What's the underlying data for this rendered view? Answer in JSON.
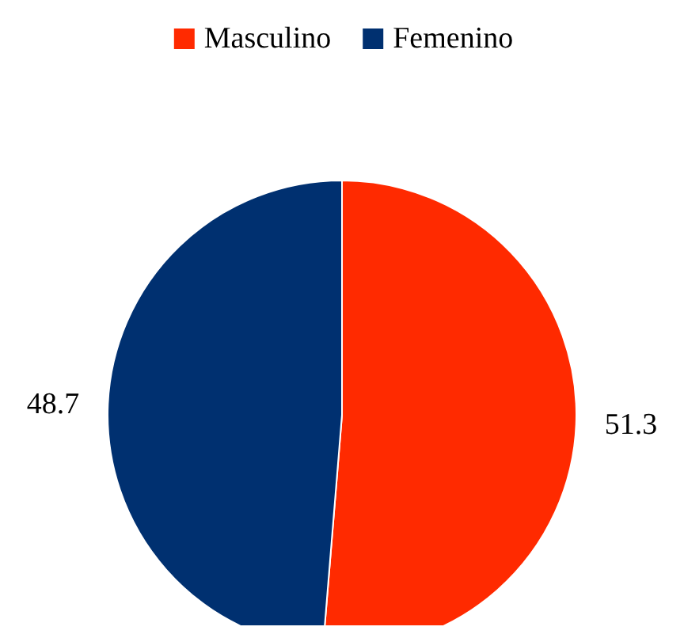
{
  "chart_data": {
    "type": "pie",
    "categories": [
      "Masculino",
      "Femenino"
    ],
    "values": [
      51.3,
      48.7
    ],
    "colors": [
      "#ff2a00",
      "#003070"
    ],
    "data_labels": true,
    "legend": "top"
  }
}
